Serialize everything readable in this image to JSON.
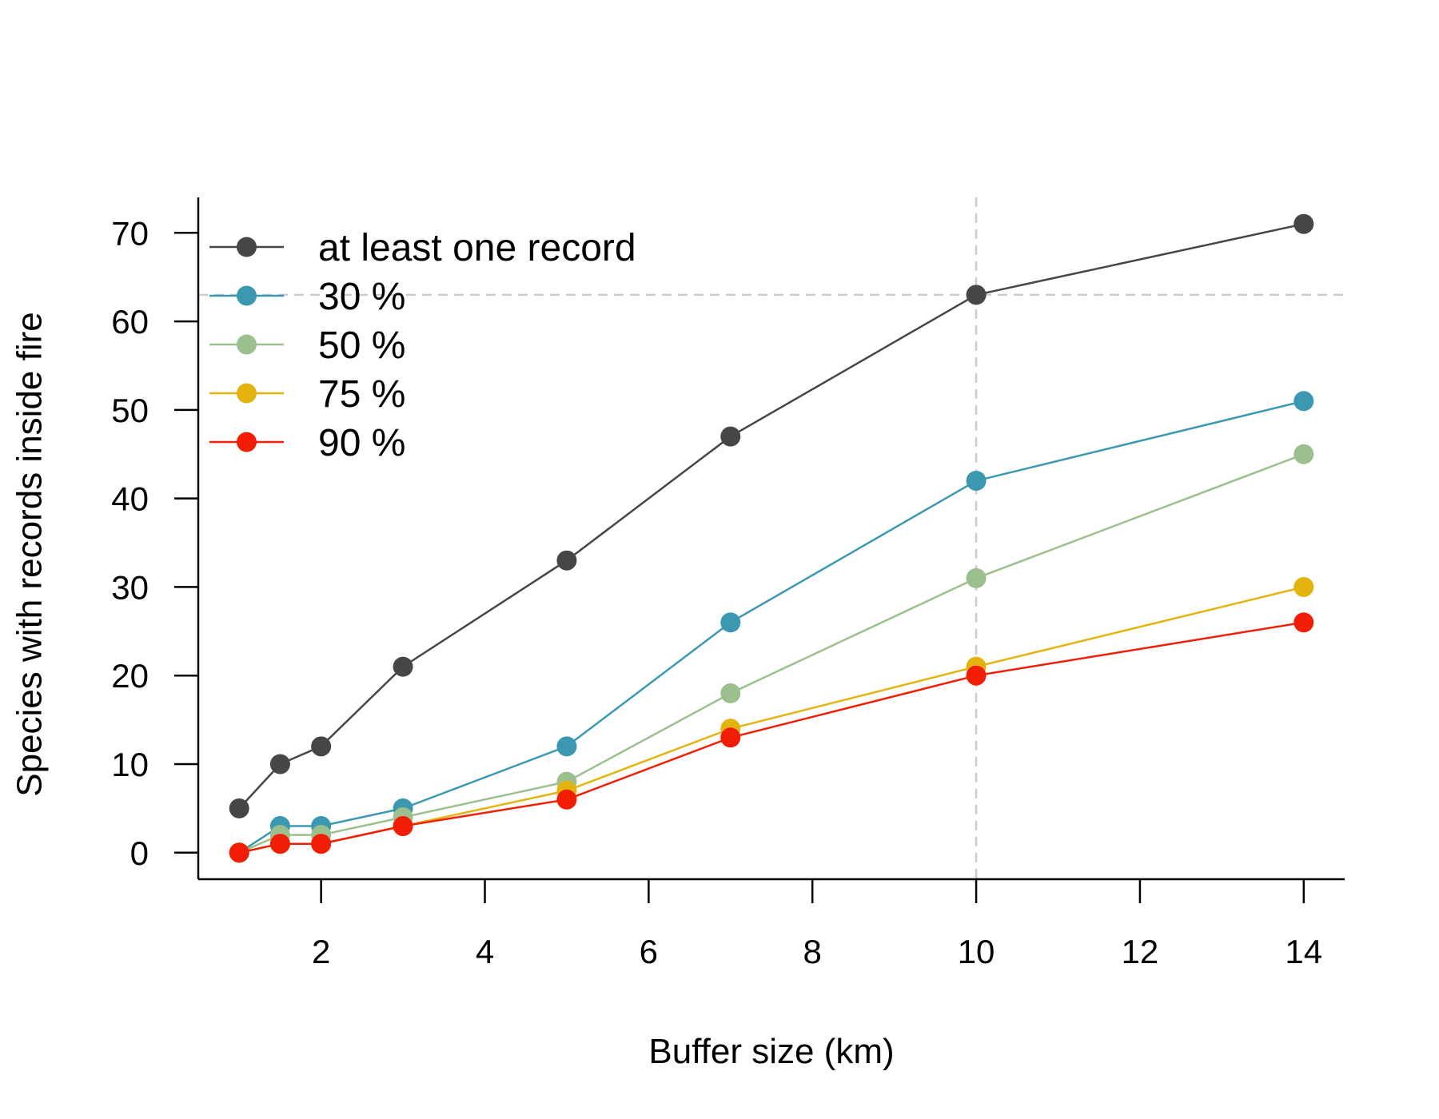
{
  "chart_data": {
    "type": "line",
    "title": "",
    "xlabel": "Buffer size (km)",
    "ylabel": "Species with records inside fire",
    "xlim": [
      0.5,
      14.5
    ],
    "ylim": [
      -3,
      74
    ],
    "xticks": [
      2,
      4,
      6,
      8,
      10,
      12,
      14
    ],
    "yticks": [
      0,
      10,
      20,
      30,
      40,
      50,
      60,
      70
    ],
    "x": [
      1,
      1.5,
      2,
      3,
      5,
      7,
      10,
      14
    ],
    "series": [
      {
        "name": "at least one record",
        "color": "#464646",
        "values": [
          5,
          10,
          12,
          21,
          33,
          47,
          63,
          71
        ]
      },
      {
        "name": "30 %",
        "color": "#3b98b0",
        "values": [
          0,
          3,
          3,
          5,
          12,
          26,
          42,
          51
        ]
      },
      {
        "name": "50 %",
        "color": "#9cbf8e",
        "values": [
          0,
          2,
          2,
          4,
          8,
          18,
          31,
          45
        ]
      },
      {
        "name": "75 %",
        "color": "#e3b410",
        "values": [
          0,
          1,
          1,
          3,
          7,
          14,
          21,
          30
        ]
      },
      {
        "name": "90 %",
        "color": "#f21d05",
        "values": [
          0,
          1,
          1,
          3,
          6,
          13,
          20,
          26
        ]
      }
    ],
    "reference_lines": {
      "x": 10,
      "y": 63,
      "style": "dashed",
      "color": "#cccccc"
    },
    "grid": false,
    "legend_position": "top-left"
  }
}
